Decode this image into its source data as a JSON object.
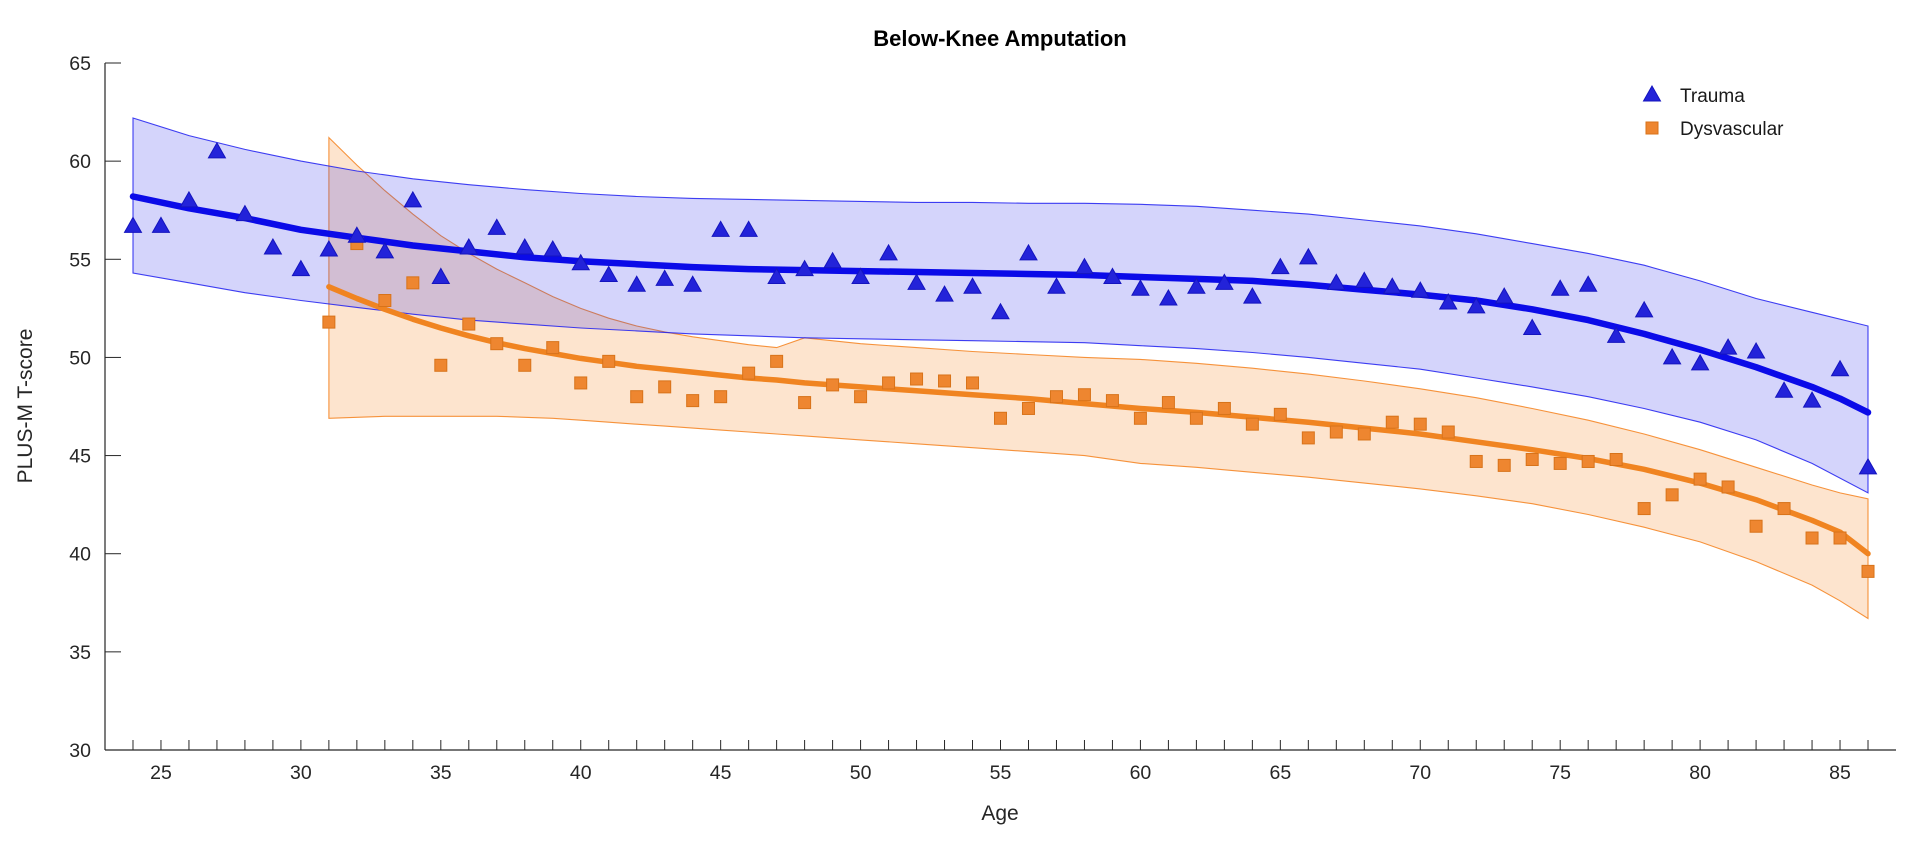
{
  "chart_data": {
    "type": "scatter",
    "title": "Below-Knee Amputation",
    "xlabel": "Age",
    "ylabel": "PLUS-M T-score",
    "xlim": [
      23,
      87
    ],
    "ylim": [
      30,
      65
    ],
    "x_tick_labels": [
      25,
      30,
      35,
      40,
      45,
      50,
      55,
      60,
      65,
      70,
      75,
      80,
      85
    ],
    "x_minor_ticks": {
      "from": 24,
      "to": 86,
      "step": 1
    },
    "y_ticks": [
      30,
      35,
      40,
      45,
      50,
      55,
      60,
      65
    ],
    "grid": false,
    "legend_position": "top-right-inside",
    "axis_color": "#262626",
    "series": [
      {
        "name": "Trauma",
        "marker": "triangle",
        "line_color": "#0b0be8",
        "line_width": 6.5,
        "marker_fill": "#2323d9",
        "marker_edge": "#1414be",
        "band_fill": "rgba(40,40,235,0.20)",
        "band_edge": "rgba(30,30,240,0.85)",
        "scatter": [
          [
            24,
            56.7
          ],
          [
            25,
            56.7
          ],
          [
            26,
            58.0
          ],
          [
            27,
            60.5
          ],
          [
            28,
            57.3
          ],
          [
            29,
            55.6
          ],
          [
            30,
            54.5
          ],
          [
            31,
            55.5
          ],
          [
            32,
            56.2
          ],
          [
            33,
            55.4
          ],
          [
            34,
            58.0
          ],
          [
            35,
            54.1
          ],
          [
            36,
            55.6
          ],
          [
            37,
            56.6
          ],
          [
            38,
            55.6
          ],
          [
            39,
            55.5
          ],
          [
            40,
            54.8
          ],
          [
            41,
            54.2
          ],
          [
            42,
            53.7
          ],
          [
            43,
            54.0
          ],
          [
            44,
            53.7
          ],
          [
            45,
            56.5
          ],
          [
            46,
            56.5
          ],
          [
            47,
            54.1
          ],
          [
            48,
            54.5
          ],
          [
            49,
            54.9
          ],
          [
            50,
            54.1
          ],
          [
            51,
            55.3
          ],
          [
            52,
            53.8
          ],
          [
            53,
            53.2
          ],
          [
            54,
            53.6
          ],
          [
            55,
            52.3
          ],
          [
            56,
            55.3
          ],
          [
            57,
            53.6
          ],
          [
            58,
            54.6
          ],
          [
            59,
            54.1
          ],
          [
            60,
            53.5
          ],
          [
            61,
            53.0
          ],
          [
            62,
            53.6
          ],
          [
            63,
            53.8
          ],
          [
            64,
            53.1
          ],
          [
            65,
            54.6
          ],
          [
            66,
            55.1
          ],
          [
            67,
            53.8
          ],
          [
            68,
            53.9
          ],
          [
            69,
            53.6
          ],
          [
            70,
            53.4
          ],
          [
            71,
            52.8
          ],
          [
            72,
            52.6
          ],
          [
            73,
            53.1
          ],
          [
            74,
            51.5
          ],
          [
            75,
            53.5
          ],
          [
            76,
            53.7
          ],
          [
            77,
            51.1
          ],
          [
            78,
            52.4
          ],
          [
            79,
            50.0
          ],
          [
            80,
            49.7
          ],
          [
            81,
            50.5
          ],
          [
            82,
            50.3
          ],
          [
            83,
            48.3
          ],
          [
            84,
            47.8
          ],
          [
            85,
            49.4
          ],
          [
            86,
            44.4
          ]
        ],
        "fit": [
          [
            24,
            58.2
          ],
          [
            26,
            57.6
          ],
          [
            28,
            57.1
          ],
          [
            30,
            56.5
          ],
          [
            32,
            56.1
          ],
          [
            34,
            55.7
          ],
          [
            36,
            55.4
          ],
          [
            38,
            55.1
          ],
          [
            40,
            54.9
          ],
          [
            42,
            54.75
          ],
          [
            44,
            54.6
          ],
          [
            46,
            54.5
          ],
          [
            48,
            54.45
          ],
          [
            50,
            54.4
          ],
          [
            52,
            54.35
          ],
          [
            54,
            54.3
          ],
          [
            56,
            54.25
          ],
          [
            58,
            54.2
          ],
          [
            60,
            54.1
          ],
          [
            62,
            54.0
          ],
          [
            64,
            53.9
          ],
          [
            66,
            53.7
          ],
          [
            68,
            53.45
          ],
          [
            70,
            53.2
          ],
          [
            72,
            52.9
          ],
          [
            74,
            52.45
          ],
          [
            76,
            51.9
          ],
          [
            78,
            51.2
          ],
          [
            80,
            50.4
          ],
          [
            82,
            49.5
          ],
          [
            84,
            48.5
          ],
          [
            85,
            47.9
          ],
          [
            86,
            47.2
          ]
        ],
        "band": [
          [
            24,
            54.3,
            62.2
          ],
          [
            26,
            53.8,
            61.3
          ],
          [
            28,
            53.3,
            60.6
          ],
          [
            30,
            52.9,
            60.0
          ],
          [
            32,
            52.55,
            59.5
          ],
          [
            34,
            52.2,
            59.1
          ],
          [
            36,
            51.9,
            58.8
          ],
          [
            38,
            51.7,
            58.55
          ],
          [
            40,
            51.5,
            58.35
          ],
          [
            42,
            51.35,
            58.2
          ],
          [
            44,
            51.2,
            58.1
          ],
          [
            46,
            51.1,
            58.05
          ],
          [
            48,
            51.0,
            58.0
          ],
          [
            50,
            50.95,
            57.95
          ],
          [
            52,
            50.9,
            57.9
          ],
          [
            54,
            50.85,
            57.9
          ],
          [
            56,
            50.8,
            57.85
          ],
          [
            58,
            50.75,
            57.85
          ],
          [
            60,
            50.6,
            57.8
          ],
          [
            62,
            50.45,
            57.7
          ],
          [
            64,
            50.25,
            57.5
          ],
          [
            66,
            50.0,
            57.3
          ],
          [
            68,
            49.7,
            57.0
          ],
          [
            70,
            49.4,
            56.7
          ],
          [
            72,
            48.95,
            56.3
          ],
          [
            74,
            48.5,
            55.8
          ],
          [
            76,
            48.0,
            55.3
          ],
          [
            78,
            47.4,
            54.7
          ],
          [
            80,
            46.7,
            53.9
          ],
          [
            82,
            45.8,
            53.0
          ],
          [
            84,
            44.6,
            52.3
          ],
          [
            86,
            43.1,
            51.6
          ]
        ]
      },
      {
        "name": "Dysvascular",
        "marker": "square",
        "line_color": "#f08421",
        "line_width": 5.5,
        "marker_fill": "#ee8630",
        "marker_edge": "#d8731a",
        "band_fill": "rgba(245,130,30,0.22)",
        "band_edge": "rgba(245,135,40,0.9)",
        "scatter": [
          [
            31,
            51.8
          ],
          [
            32,
            55.8
          ],
          [
            33,
            52.9
          ],
          [
            34,
            53.8
          ],
          [
            35,
            49.6
          ],
          [
            36,
            51.7
          ],
          [
            37,
            50.7
          ],
          [
            38,
            49.6
          ],
          [
            39,
            50.5
          ],
          [
            40,
            48.7
          ],
          [
            41,
            49.8
          ],
          [
            42,
            48.0
          ],
          [
            43,
            48.5
          ],
          [
            44,
            47.8
          ],
          [
            45,
            48.0
          ],
          [
            46,
            49.2
          ],
          [
            47,
            49.8
          ],
          [
            48,
            47.7
          ],
          [
            49,
            48.6
          ],
          [
            50,
            48.0
          ],
          [
            51,
            48.7
          ],
          [
            52,
            48.9
          ],
          [
            53,
            48.8
          ],
          [
            54,
            48.7
          ],
          [
            55,
            46.9
          ],
          [
            56,
            47.4
          ],
          [
            57,
            48.0
          ],
          [
            58,
            48.1
          ],
          [
            59,
            47.8
          ],
          [
            60,
            46.9
          ],
          [
            61,
            47.7
          ],
          [
            62,
            46.9
          ],
          [
            63,
            47.4
          ],
          [
            64,
            46.6
          ],
          [
            65,
            47.1
          ],
          [
            66,
            45.9
          ],
          [
            67,
            46.2
          ],
          [
            68,
            46.1
          ],
          [
            69,
            46.7
          ],
          [
            70,
            46.6
          ],
          [
            71,
            46.2
          ],
          [
            72,
            44.7
          ],
          [
            73,
            44.5
          ],
          [
            74,
            44.8
          ],
          [
            75,
            44.6
          ],
          [
            76,
            44.7
          ],
          [
            77,
            44.8
          ],
          [
            78,
            42.3
          ],
          [
            79,
            43.0
          ],
          [
            80,
            43.8
          ],
          [
            81,
            43.4
          ],
          [
            82,
            41.4
          ],
          [
            83,
            42.3
          ],
          [
            84,
            40.8
          ],
          [
            85,
            40.8
          ],
          [
            86,
            39.1
          ]
        ],
        "fit": [
          [
            31,
            53.6
          ],
          [
            32,
            53.0
          ],
          [
            33,
            52.45
          ],
          [
            34,
            51.95
          ],
          [
            35,
            51.5
          ],
          [
            36,
            51.1
          ],
          [
            37,
            50.75
          ],
          [
            38,
            50.45
          ],
          [
            39,
            50.2
          ],
          [
            40,
            49.95
          ],
          [
            41,
            49.75
          ],
          [
            42,
            49.55
          ],
          [
            43,
            49.4
          ],
          [
            44,
            49.25
          ],
          [
            45,
            49.1
          ],
          [
            46,
            48.95
          ],
          [
            47,
            48.85
          ],
          [
            48,
            48.7
          ],
          [
            50,
            48.5
          ],
          [
            52,
            48.3
          ],
          [
            54,
            48.1
          ],
          [
            56,
            47.9
          ],
          [
            58,
            47.65
          ],
          [
            60,
            47.4
          ],
          [
            62,
            47.2
          ],
          [
            64,
            46.95
          ],
          [
            66,
            46.7
          ],
          [
            68,
            46.4
          ],
          [
            70,
            46.1
          ],
          [
            72,
            45.7
          ],
          [
            74,
            45.3
          ],
          [
            76,
            44.85
          ],
          [
            78,
            44.3
          ],
          [
            80,
            43.6
          ],
          [
            82,
            42.75
          ],
          [
            84,
            41.7
          ],
          [
            85,
            41.1
          ],
          [
            86,
            40.0
          ]
        ],
        "band": [
          [
            31,
            46.9,
            61.2
          ],
          [
            32,
            46.95,
            59.8
          ],
          [
            33,
            47.0,
            58.5
          ],
          [
            34,
            47.0,
            57.3
          ],
          [
            35,
            47.0,
            56.2
          ],
          [
            36,
            47.0,
            55.3
          ],
          [
            37,
            47.0,
            54.5
          ],
          [
            38,
            46.95,
            53.8
          ],
          [
            39,
            46.9,
            53.1
          ],
          [
            40,
            46.8,
            52.5
          ],
          [
            41,
            46.7,
            52.0
          ],
          [
            42,
            46.6,
            51.6
          ],
          [
            43,
            46.5,
            51.3
          ],
          [
            44,
            46.4,
            51.05
          ],
          [
            45,
            46.3,
            50.85
          ],
          [
            46,
            46.2,
            50.65
          ],
          [
            47,
            46.1,
            50.5
          ],
          [
            48,
            46.0,
            51.0
          ],
          [
            50,
            45.8,
            50.7
          ],
          [
            52,
            45.6,
            50.5
          ],
          [
            54,
            45.4,
            50.3
          ],
          [
            56,
            45.2,
            50.15
          ],
          [
            58,
            45.0,
            50.0
          ],
          [
            60,
            44.6,
            49.9
          ],
          [
            62,
            44.4,
            49.7
          ],
          [
            64,
            44.15,
            49.45
          ],
          [
            66,
            43.9,
            49.15
          ],
          [
            68,
            43.6,
            48.8
          ],
          [
            70,
            43.3,
            48.4
          ],
          [
            72,
            42.95,
            47.95
          ],
          [
            74,
            42.55,
            47.4
          ],
          [
            76,
            42.0,
            46.8
          ],
          [
            78,
            41.35,
            46.1
          ],
          [
            80,
            40.6,
            45.3
          ],
          [
            82,
            39.6,
            44.4
          ],
          [
            84,
            38.4,
            43.5
          ],
          [
            85,
            37.6,
            43.1
          ],
          [
            86,
            36.7,
            42.8
          ]
        ]
      }
    ]
  }
}
